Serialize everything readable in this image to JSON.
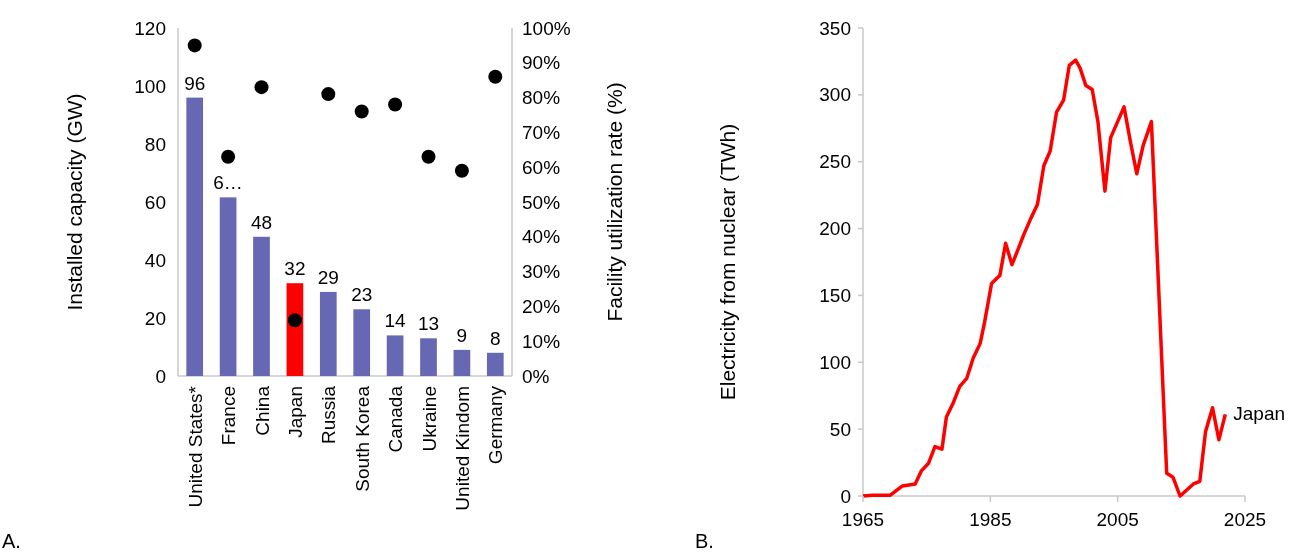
{
  "chart_data": [
    {
      "type": "bar",
      "categories": [
        "United States*",
        "France",
        "China",
        "Japan",
        "Russia",
        "South Korea",
        "Canada",
        "Ukraine",
        "United Kindom",
        "Germany"
      ],
      "ylabel": "Installed capacity (GW)",
      "y2label": "Facility utilization rate (%)",
      "ylim": [
        0,
        120
      ],
      "yticks": [
        0,
        20,
        40,
        60,
        80,
        100,
        120
      ],
      "y2lim": [
        0,
        100
      ],
      "y2ticks": [
        {
          "value": 0,
          "label": "0%"
        },
        {
          "value": 10,
          "label": "10%"
        },
        {
          "value": 20,
          "label": "20%"
        },
        {
          "value": 30,
          "label": "30%"
        },
        {
          "value": 40,
          "label": "40%"
        },
        {
          "value": 50,
          "label": "50%"
        },
        {
          "value": 60,
          "label": "60%"
        },
        {
          "value": 70,
          "label": "70%"
        },
        {
          "value": 80,
          "label": "80%"
        },
        {
          "value": 90,
          "label": "90%"
        },
        {
          "value": 100,
          "label": "100%"
        }
      ],
      "grid": false,
      "legend": false,
      "annotations": [
        "A."
      ],
      "series": [
        {
          "type": "bar",
          "values": [
            96,
            61.6,
            48,
            32,
            29,
            23,
            14,
            13,
            9,
            8
          ],
          "colors": [
            "#6668b4",
            "#6668b4",
            "#6668b4",
            "#ff0000",
            "#6668b4",
            "#6668b4",
            "#6668b4",
            "#6668b4",
            "#6668b4",
            "#6668b4"
          ],
          "value_labels": [
            "96",
            "6…",
            "48",
            "32",
            "29",
            "23",
            "14",
            "13",
            "9",
            "8"
          ]
        },
        {
          "type": "scatter",
          "axis": "y2",
          "marker": "circle",
          "color": "#000000",
          "x": [
            "United States*",
            "France",
            "China",
            "Japan",
            "Russia",
            "South Korea",
            "Canada",
            "Ukraine",
            "United Kindom",
            "Germany"
          ],
          "values": [
            95,
            63,
            83,
            16,
            81,
            76,
            78,
            63,
            59,
            86
          ]
        }
      ]
    },
    {
      "type": "line",
      "ylabel": "Electricity from nuclear (TWh)",
      "xlim": [
        1965,
        2025
      ],
      "xticks": [
        1965,
        1985,
        2005,
        2025
      ],
      "ylim": [
        0,
        350
      ],
      "yticks": [
        0,
        50,
        100,
        150,
        200,
        250,
        300,
        350
      ],
      "grid": false,
      "legend": false,
      "annotations": [
        "B."
      ],
      "series": [
        {
          "name": "Japan",
          "color": "#ff0000",
          "x": [
            1965,
            1966.5,
            1969.3,
            1971.2,
            1973.2,
            1974.2,
            1975.3,
            1976.3,
            1977.4,
            1978.1,
            1979.2,
            1980.2,
            1981.3,
            1982.3,
            1983.4,
            1984.1,
            1985.2,
            1986.5,
            1987.4,
            1988.4,
            1989.4,
            1990.3,
            1991.4,
            1992.4,
            1993.4,
            1994.4,
            1995.4,
            1996.5,
            1997.4,
            1998.4,
            1999.1,
            2000.0,
            2001.0,
            2001.9,
            2003.0,
            2003.9,
            2005.0,
            2006.0,
            2007.0,
            2008.0,
            2009.0,
            2010.3,
            2012.7,
            2013.7,
            2014.8,
            2016.9,
            2017.9,
            2018.8,
            2019.9,
            2020.9,
            2021.9
          ],
          "values": [
            0,
            0.5,
            0.6,
            7.5,
            9,
            19,
            24.5,
            37,
            35,
            59,
            70,
            82,
            88,
            103,
            114,
            130,
            159,
            165,
            189,
            173,
            185,
            196,
            208,
            218,
            247,
            258,
            287,
            296,
            322,
            326,
            320,
            307,
            304,
            280,
            228,
            268,
            280,
            291,
            265,
            241,
            262,
            280,
            17,
            14,
            0,
            9,
            11,
            48,
            66,
            42,
            61
          ]
        }
      ]
    }
  ]
}
